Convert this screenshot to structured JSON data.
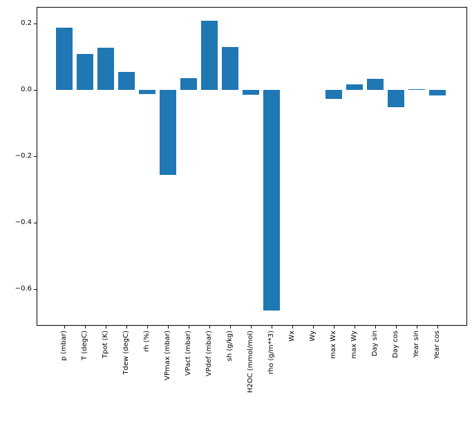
{
  "figure": {
    "background": "#ffffff",
    "title": ""
  },
  "chart_data": {
    "type": "bar",
    "title": "",
    "xlabel": "",
    "ylabel": "",
    "categories": [
      "p (mbar)",
      "T (degC)",
      "Tpot (K)",
      "Tdew (degC)",
      "rh (%)",
      "VPmax (mbar)",
      "VPact (mbar)",
      "VPdef (mbar)",
      "sh (g/kg)",
      "H2OC (mmol/mol)",
      "rho (g/m**3)",
      "Wx",
      "Wy",
      "max Wx",
      "max Wy",
      "Day sin",
      "Day cos",
      "Year sin",
      "Year cos"
    ],
    "values": [
      0.187,
      0.109,
      0.127,
      0.054,
      -0.012,
      -0.255,
      0.035,
      0.208,
      0.13,
      -0.014,
      -0.664,
      0.0,
      0.0,
      -0.026,
      0.017,
      0.033,
      -0.053,
      0.002,
      -0.017
    ],
    "bar_color": "#1f77b4",
    "ylim": [
      -0.71,
      0.25
    ],
    "yticks": [
      0.2,
      0.0,
      -0.2,
      -0.4,
      -0.6
    ],
    "ytick_labels": [
      "0.2",
      "0.0",
      "−0.2",
      "−0.4",
      "−0.6"
    ],
    "grid": false,
    "legend": null,
    "x_tick_rotation_deg": 90
  }
}
